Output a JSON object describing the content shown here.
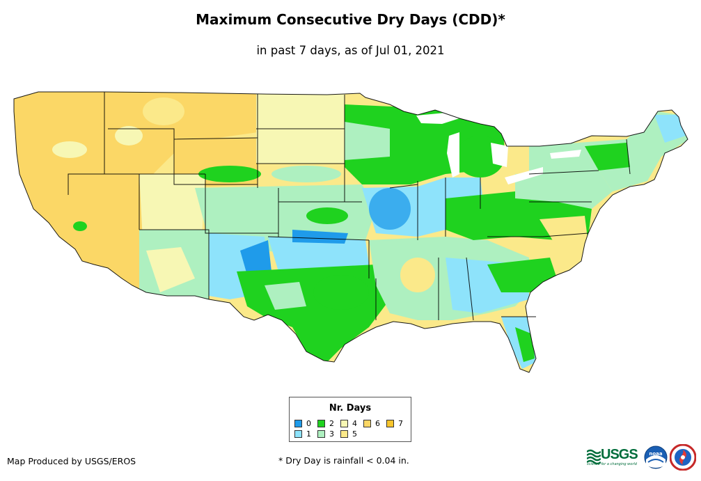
{
  "title": "Maximum Consecutive Dry Days (CDD)*",
  "subtitle": "in past 7 days, as of Jul 01, 2021",
  "legend": {
    "title": "Nr. Days",
    "items": [
      {
        "label": "0",
        "color": "#1f9bea"
      },
      {
        "label": "1",
        "color": "#8ee3fb"
      },
      {
        "label": "2",
        "color": "#1fd21f"
      },
      {
        "label": "3",
        "color": "#aef0c0"
      },
      {
        "label": "4",
        "color": "#f7f7b4"
      },
      {
        "label": "5",
        "color": "#fbe98a"
      },
      {
        "label": "6",
        "color": "#fbd766"
      },
      {
        "label": "7",
        "color": "#f8c52c"
      }
    ]
  },
  "footer": {
    "credit": "Map Produced by USGS/EROS",
    "note": "* Dry Day is rainfall < 0.04 in."
  },
  "logos": {
    "usgs": "USGS",
    "usgs_tagline": "science for a changing world",
    "noaa": "noaa"
  },
  "icons": [
    "usgs-logo-icon",
    "noaa-logo-icon",
    "nws-logo-icon"
  ]
}
